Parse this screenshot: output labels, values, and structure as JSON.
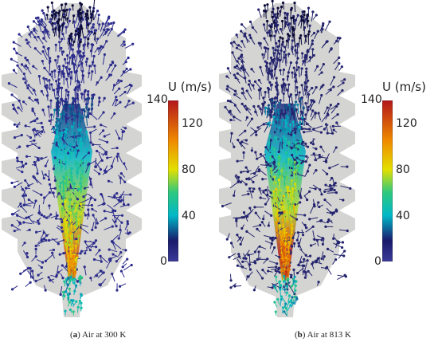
{
  "colorbar": {
    "title": "U (m/s)",
    "ticks": [
      "140",
      "120",
      "80",
      "40",
      "0"
    ],
    "min": 0,
    "max": 140,
    "stops": [
      {
        "v": 0,
        "color": "#3b3b9a"
      },
      {
        "v": 18,
        "color": "#1a1a6b"
      },
      {
        "v": 40,
        "color": "#00b8c8"
      },
      {
        "v": 60,
        "color": "#2fc87f"
      },
      {
        "v": 80,
        "color": "#e3e000"
      },
      {
        "v": 105,
        "color": "#f08a00"
      },
      {
        "v": 140,
        "color": "#b3171b"
      }
    ]
  },
  "panels": [
    {
      "id": "a",
      "caption_label": "a",
      "caption_text": "Air at 300 K",
      "jet_peak": 120,
      "arrow_color": "#2c2c8c"
    },
    {
      "id": "b",
      "caption_label": "b",
      "caption_text": "Air at 813 K",
      "jet_peak": 140,
      "arrow_color": "#24246e"
    }
  ],
  "colors": {
    "domain_fill": "#d4d4d2",
    "background": "#ffffff"
  }
}
